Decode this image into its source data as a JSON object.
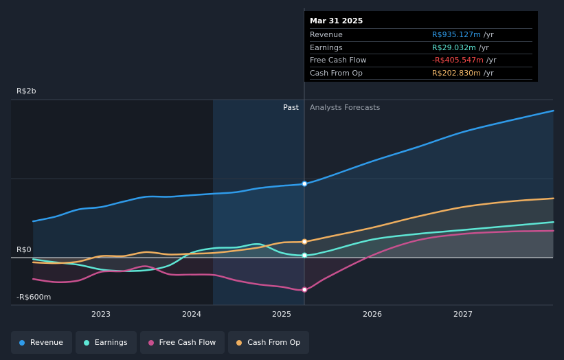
{
  "tooltip": {
    "date": "Mar 31 2025",
    "rows": [
      {
        "label": "Revenue",
        "value": "R$935.127m",
        "unit": "/yr",
        "color": "#2f9bea"
      },
      {
        "label": "Earnings",
        "value": "R$29.032m",
        "unit": "/yr",
        "color": "#5ee6d5"
      },
      {
        "label": "Free Cash Flow",
        "value": "-R$405.547m",
        "unit": "/yr",
        "color": "#ff4c4c"
      },
      {
        "label": "Cash From Op",
        "value": "R$202.830m",
        "unit": "/yr",
        "color": "#f2b86a"
      }
    ]
  },
  "legend": [
    {
      "label": "Revenue",
      "color": "#2f9bea"
    },
    {
      "label": "Earnings",
      "color": "#5ee6d5"
    },
    {
      "label": "Free Cash Flow",
      "color": "#c8508e"
    },
    {
      "label": "Cash From Op",
      "color": "#eeae5f"
    }
  ],
  "chart_data": {
    "type": "line",
    "title": "",
    "xlabel": "",
    "ylabel": "",
    "y_axis_labels": [
      "R$2b",
      "R$0",
      "-R$600m"
    ],
    "x_tick_labels": [
      "2023",
      "2024",
      "2025",
      "2026",
      "2027"
    ],
    "divider_labels": {
      "past": "Past",
      "forecast": "Analysts Forecasts"
    },
    "divider_x": 2025.25,
    "ylim": [
      -600,
      2000
    ],
    "xlim": [
      2022.25,
      2028.0
    ],
    "series": [
      {
        "name": "Revenue",
        "color": "#2f9bea",
        "points": [
          [
            2022.25,
            460
          ],
          [
            2022.5,
            520
          ],
          [
            2022.75,
            610
          ],
          [
            2023.0,
            640
          ],
          [
            2023.25,
            710
          ],
          [
            2023.5,
            770
          ],
          [
            2023.75,
            770
          ],
          [
            2024.0,
            790
          ],
          [
            2024.25,
            810
          ],
          [
            2024.5,
            830
          ],
          [
            2024.75,
            880
          ],
          [
            2025.0,
            910
          ],
          [
            2025.25,
            935
          ],
          [
            2025.5,
            1020
          ],
          [
            2026.0,
            1220
          ],
          [
            2026.5,
            1400
          ],
          [
            2027.0,
            1590
          ],
          [
            2027.5,
            1730
          ],
          [
            2028.0,
            1860
          ]
        ]
      },
      {
        "name": "Earnings",
        "color": "#5ee6d5",
        "points": [
          [
            2022.25,
            -20
          ],
          [
            2022.5,
            -60
          ],
          [
            2022.75,
            -90
          ],
          [
            2023.0,
            -150
          ],
          [
            2023.25,
            -170
          ],
          [
            2023.5,
            -160
          ],
          [
            2023.75,
            -100
          ],
          [
            2024.0,
            60
          ],
          [
            2024.25,
            120
          ],
          [
            2024.5,
            130
          ],
          [
            2024.75,
            170
          ],
          [
            2025.0,
            60
          ],
          [
            2025.25,
            29
          ],
          [
            2025.5,
            80
          ],
          [
            2026.0,
            230
          ],
          [
            2026.5,
            300
          ],
          [
            2027.0,
            350
          ],
          [
            2027.5,
            400
          ],
          [
            2028.0,
            450
          ]
        ]
      },
      {
        "name": "Free Cash Flow",
        "color": "#c8508e",
        "points": [
          [
            2022.25,
            -270
          ],
          [
            2022.5,
            -310
          ],
          [
            2022.75,
            -290
          ],
          [
            2023.0,
            -180
          ],
          [
            2023.25,
            -170
          ],
          [
            2023.5,
            -110
          ],
          [
            2023.75,
            -210
          ],
          [
            2024.0,
            -215
          ],
          [
            2024.25,
            -220
          ],
          [
            2024.5,
            -290
          ],
          [
            2024.75,
            -340
          ],
          [
            2025.0,
            -370
          ],
          [
            2025.25,
            -405
          ],
          [
            2025.5,
            -250
          ],
          [
            2026.0,
            30
          ],
          [
            2026.5,
            220
          ],
          [
            2027.0,
            300
          ],
          [
            2027.5,
            330
          ],
          [
            2028.0,
            340
          ]
        ]
      },
      {
        "name": "Cash From Op",
        "color": "#eeae5f",
        "points": [
          [
            2022.25,
            -60
          ],
          [
            2022.5,
            -70
          ],
          [
            2022.75,
            -50
          ],
          [
            2023.0,
            20
          ],
          [
            2023.25,
            20
          ],
          [
            2023.5,
            70
          ],
          [
            2023.75,
            40
          ],
          [
            2024.0,
            50
          ],
          [
            2024.25,
            60
          ],
          [
            2024.5,
            90
          ],
          [
            2024.75,
            130
          ],
          [
            2025.0,
            190
          ],
          [
            2025.25,
            203
          ],
          [
            2025.5,
            260
          ],
          [
            2026.0,
            380
          ],
          [
            2026.5,
            520
          ],
          [
            2027.0,
            640
          ],
          [
            2027.5,
            710
          ],
          [
            2028.0,
            750
          ]
        ]
      }
    ]
  }
}
